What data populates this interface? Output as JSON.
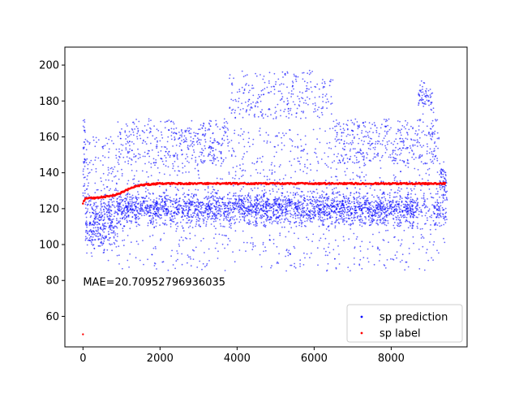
{
  "chart_data": {
    "type": "scatter",
    "title": "",
    "xlabel": "",
    "ylabel": "",
    "xlim": [
      -470,
      9970
    ],
    "ylim": [
      43,
      210
    ],
    "x_ticks": [
      0,
      2000,
      4000,
      6000,
      8000
    ],
    "x_tick_labels": [
      "0",
      "2000",
      "4000",
      "6000",
      "8000"
    ],
    "y_ticks": [
      60,
      80,
      100,
      120,
      140,
      160,
      180,
      200
    ],
    "y_tick_labels": [
      "60",
      "80",
      "100",
      "120",
      "140",
      "160",
      "180",
      "200"
    ],
    "grid": false,
    "legend_position": "lower-right",
    "annotation": {
      "text": "MAE=20.70952796936035",
      "x": 0,
      "y": 79
    },
    "x_range": [
      0,
      9400
    ],
    "series": [
      {
        "name": "sp prediction",
        "color": "#0000ff",
        "marker": "dot",
        "approx_points": 9400,
        "description_levels": {
          "main_band": [
            110,
            130
          ],
          "upper_band": [
            150,
            170
          ],
          "high_band_x": [
            3800,
            6500
          ],
          "high_band_y": [
            170,
            197
          ],
          "late_cluster_x": [
            8700,
            9100
          ],
          "late_cluster_y": [
            175,
            190
          ],
          "min": 83,
          "max": 202
        }
      },
      {
        "name": "sp label",
        "color": "#ff0000",
        "marker": "dot",
        "points": [
          [
            0,
            123
          ],
          [
            50,
            125
          ],
          [
            100,
            126
          ],
          [
            300,
            126
          ],
          [
            500,
            126.5
          ],
          [
            700,
            127
          ],
          [
            900,
            128
          ],
          [
            1100,
            130
          ],
          [
            1300,
            132
          ],
          [
            1500,
            133
          ],
          [
            1700,
            133.5
          ],
          [
            2000,
            134
          ],
          [
            3000,
            134
          ],
          [
            4000,
            134
          ],
          [
            5000,
            134
          ],
          [
            6000,
            134
          ],
          [
            7000,
            134
          ],
          [
            8000,
            134
          ],
          [
            9400,
            134
          ]
        ],
        "outlier": [
          0,
          50
        ]
      }
    ]
  }
}
